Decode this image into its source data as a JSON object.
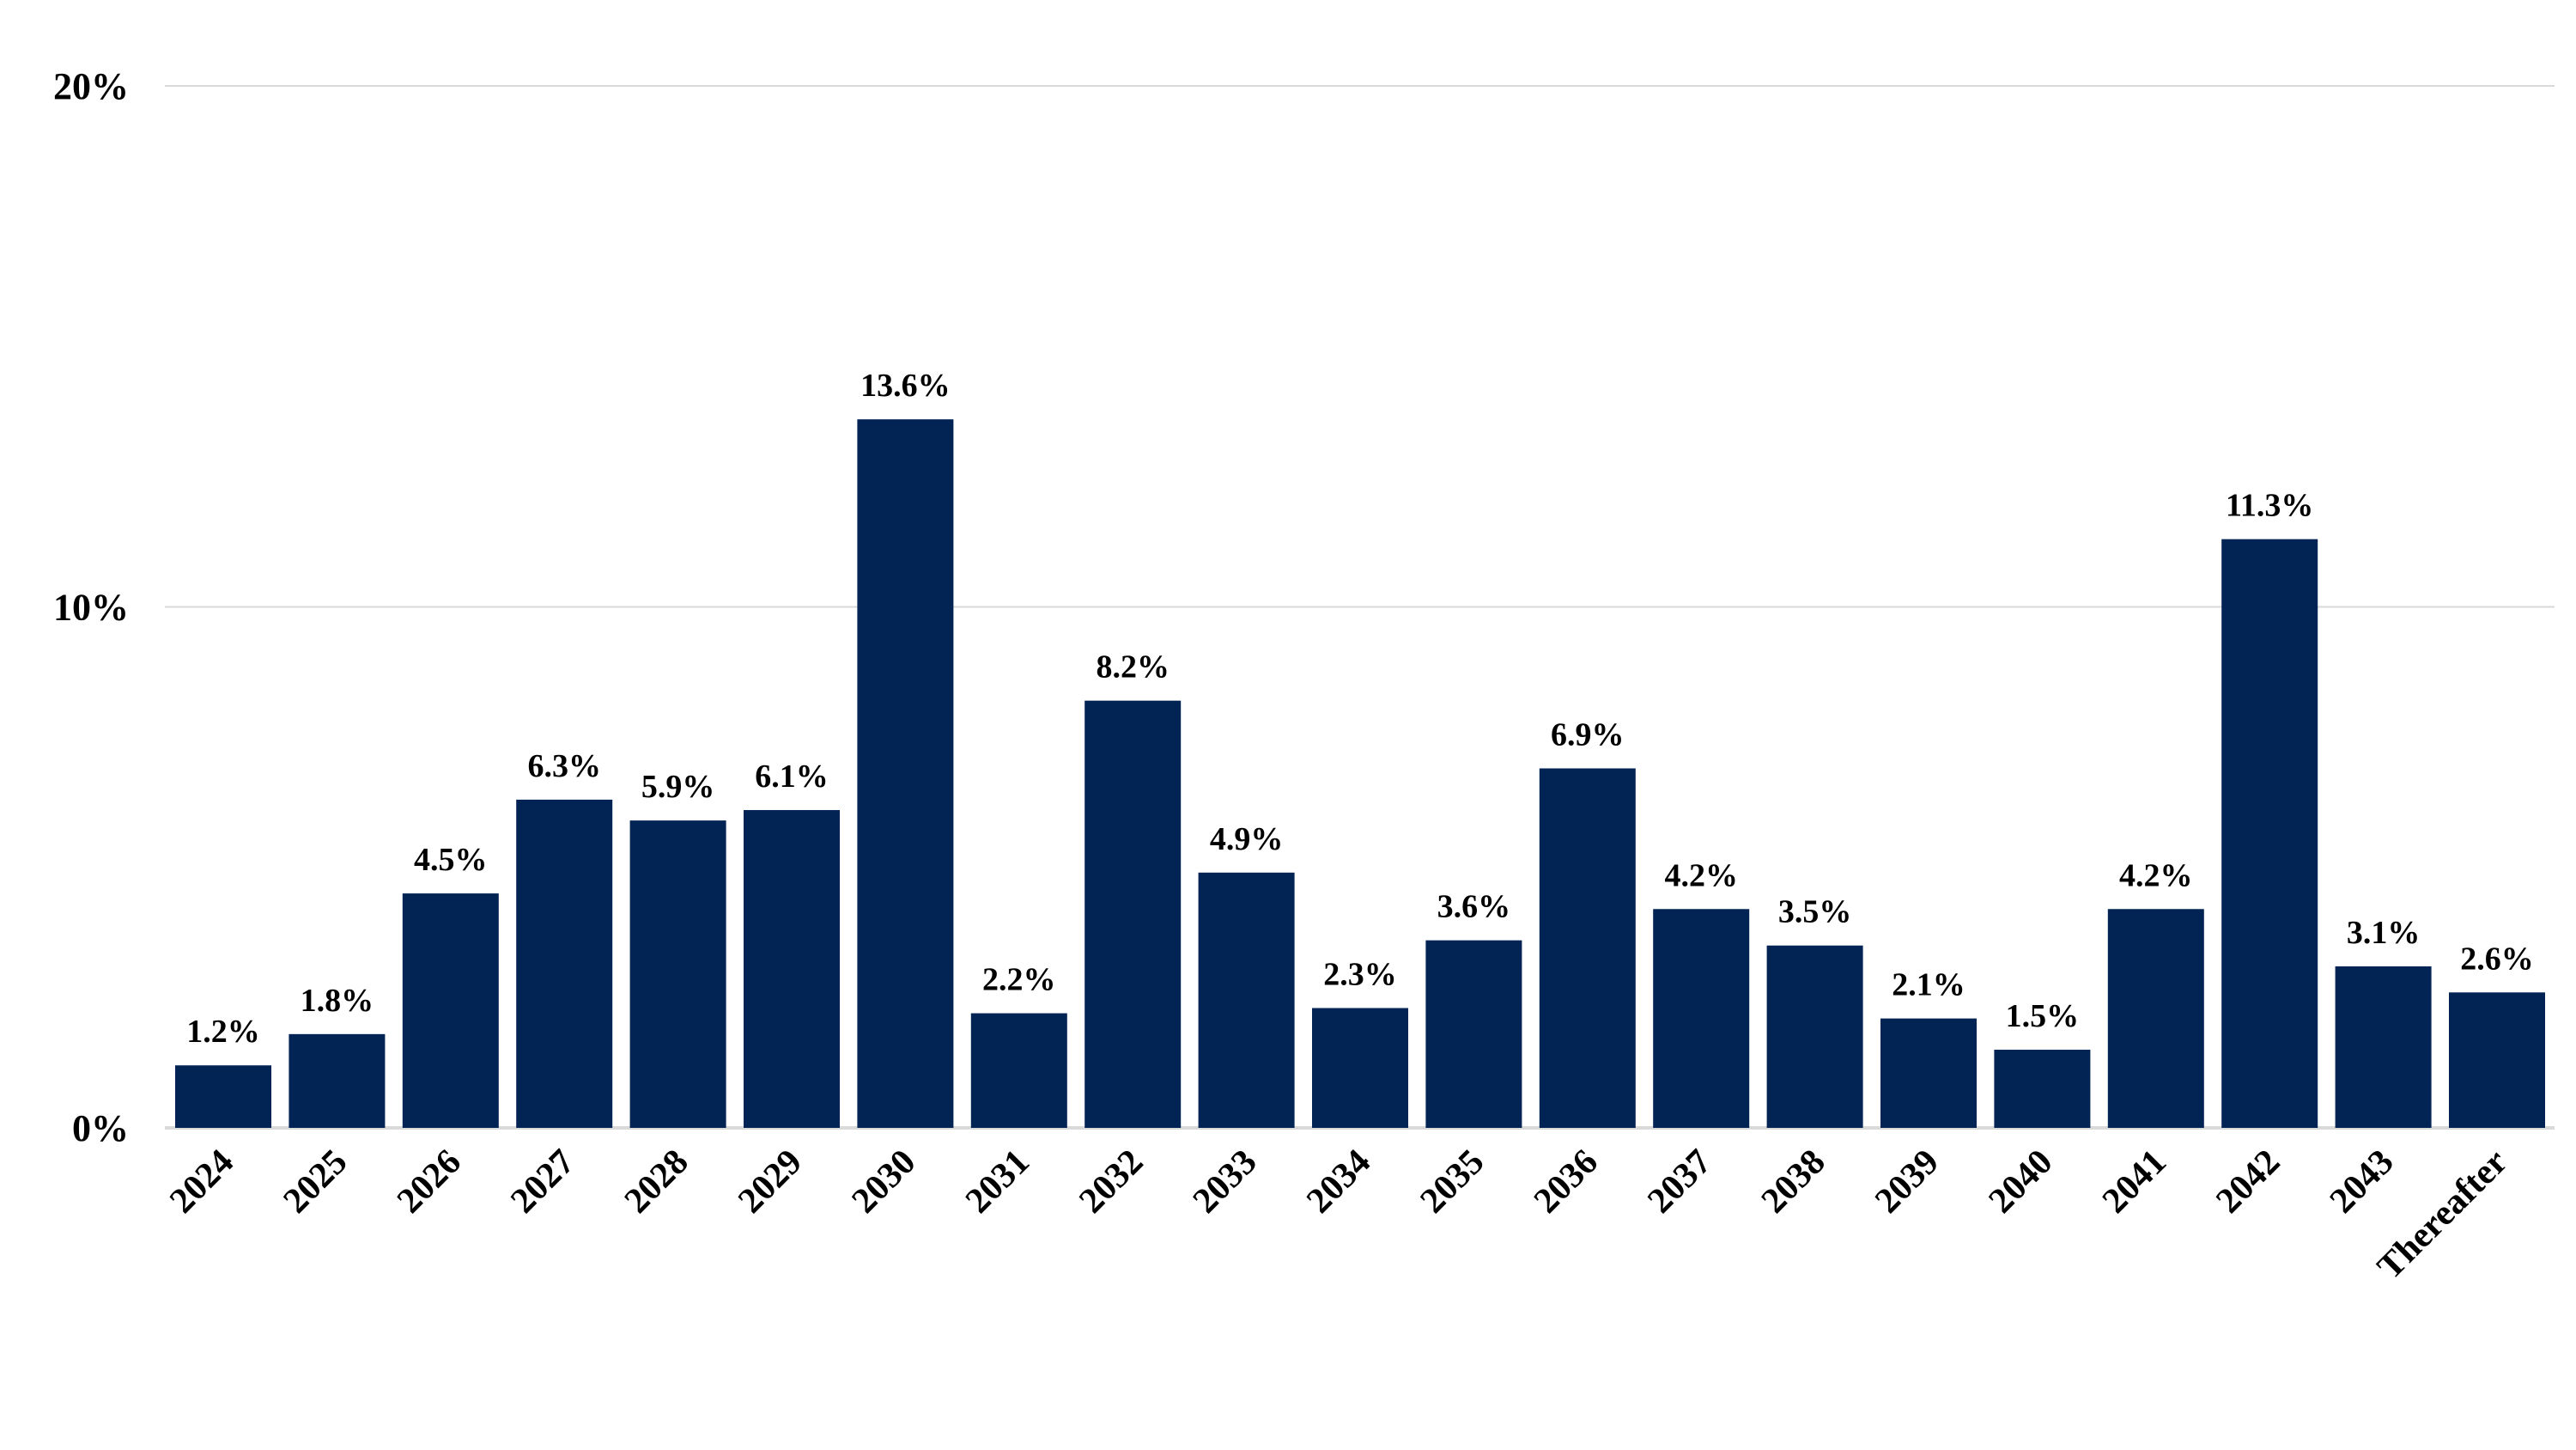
{
  "chart_data": {
    "type": "bar",
    "title": "",
    "xlabel": "",
    "ylabel": "",
    "ylim": [
      0,
      20
    ],
    "yticks": [
      0,
      10,
      20
    ],
    "ytick_labels": [
      "0%",
      "10%",
      "20%"
    ],
    "grid": true,
    "categories": [
      "2024",
      "2025",
      "2026",
      "2027",
      "2028",
      "2029",
      "2030",
      "2031",
      "2032",
      "2033",
      "2034",
      "2035",
      "2036",
      "2037",
      "2038",
      "2039",
      "2040",
      "2041",
      "2042",
      "2043",
      "Thereafter"
    ],
    "values": [
      1.2,
      1.8,
      4.5,
      6.3,
      5.9,
      6.1,
      13.6,
      2.2,
      8.2,
      4.9,
      2.3,
      3.6,
      6.9,
      4.2,
      3.5,
      2.1,
      1.5,
      4.2,
      11.3,
      3.1,
      2.6
    ],
    "data_labels": [
      "1.2%",
      "1.8%",
      "4.5%",
      "6.3%",
      "5.9%",
      "6.1%",
      "13.6%",
      "2.2%",
      "8.2%",
      "4.9%",
      "2.3%",
      "3.6%",
      "6.9%",
      "4.2%",
      "3.5%",
      "2.1%",
      "1.5%",
      "4.2%",
      "11.3%",
      "3.1%",
      "2.6%"
    ],
    "bar_color": "#022454",
    "grid_color": "#d9d9d9"
  }
}
